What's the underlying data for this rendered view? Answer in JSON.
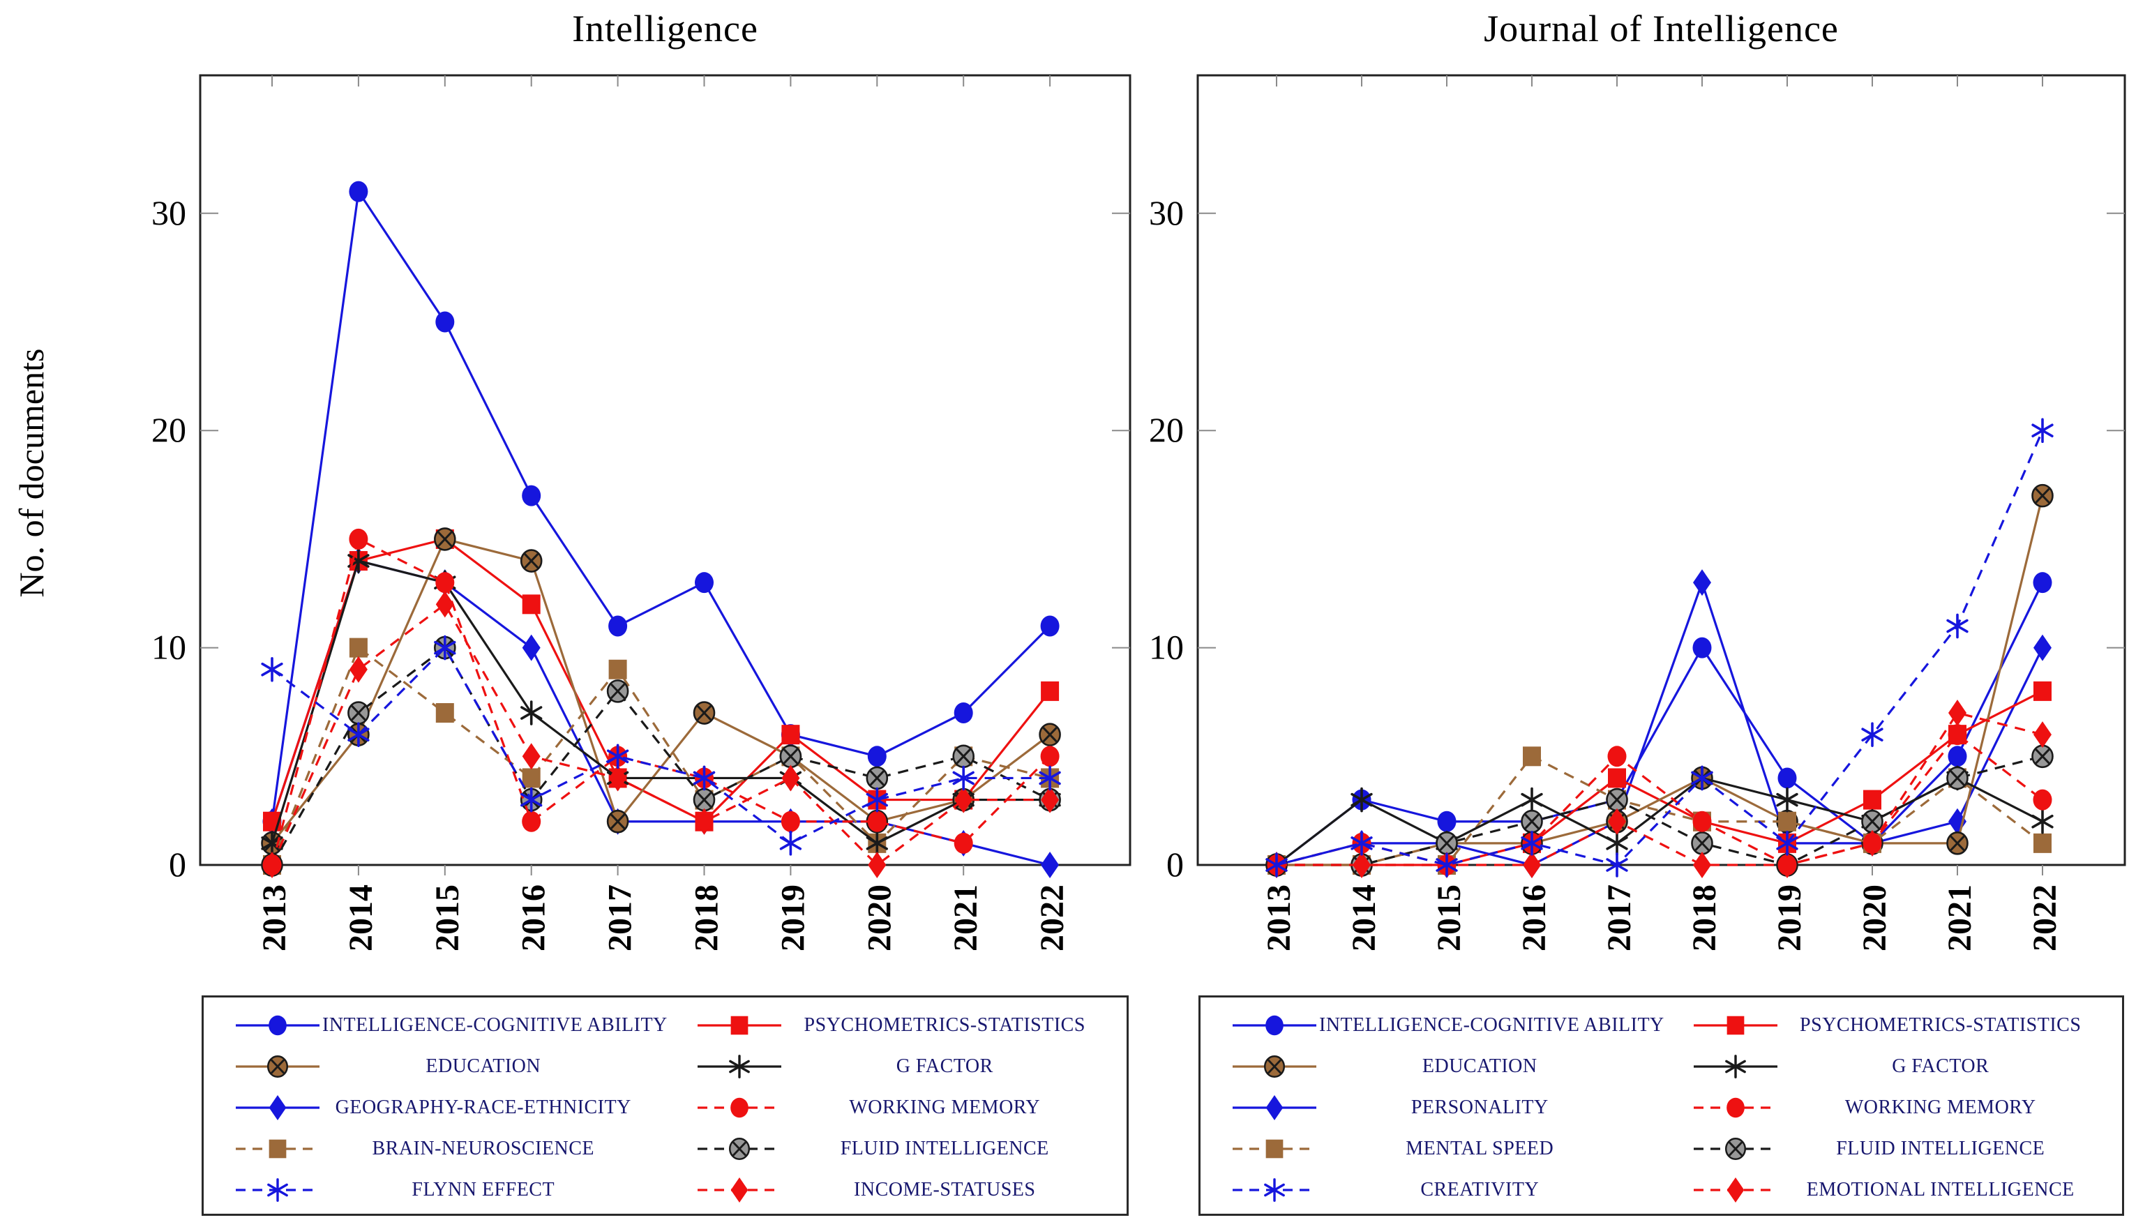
{
  "chart_data": {
    "type": "line",
    "ylabel": "No. of documents",
    "x": [
      "2013",
      "2014",
      "2015",
      "2016",
      "2017",
      "2018",
      "2019",
      "2020",
      "2021",
      "2022"
    ],
    "yticks": [
      0,
      10,
      20,
      30
    ],
    "ylim": [
      0,
      36
    ],
    "grid": false,
    "legend_position": "below",
    "palette": {
      "blue": "#1616dd",
      "red": "#ee1111",
      "brown": "#9c6a3a",
      "black": "#1a1a1a",
      "marker_gray": "#989898",
      "legend_text": "#17176e"
    },
    "charts": [
      {
        "title": "Intelligence",
        "series": [
          {
            "name": "INTELLIGENCE-COGNITIVE ABILITY",
            "color": "#1616dd",
            "dash": false,
            "marker": "circle",
            "values": [
              2,
              31,
              25,
              17,
              11,
              13,
              6,
              5,
              7,
              11
            ]
          },
          {
            "name": "EDUCATION",
            "color": "#9c6a3a",
            "dash": false,
            "marker": "circle-x",
            "values": [
              1,
              6,
              15,
              14,
              2,
              7,
              5,
              2,
              3,
              6
            ]
          },
          {
            "name": "GEOGRAPHY-RACE-ETHNICITY",
            "color": "#1616dd",
            "dash": false,
            "marker": "diamond",
            "values": [
              2,
              14,
              13,
              10,
              2,
              2,
              2,
              2,
              1,
              0
            ]
          },
          {
            "name": "BRAIN-NEUROSCIENCE",
            "color": "#9c6a3a",
            "dash": true,
            "marker": "square",
            "values": [
              0,
              10,
              7,
              4,
              9,
              3,
              5,
              1,
              5,
              4
            ]
          },
          {
            "name": "FLYNN EFFECT",
            "color": "#1616dd",
            "dash": true,
            "marker": "star",
            "values": [
              9,
              6,
              10,
              3,
              5,
              4,
              1,
              3,
              4,
              4
            ]
          },
          {
            "name": "PSYCHOMETRICS-STATISTICS",
            "color": "#ee1111",
            "dash": false,
            "marker": "square",
            "values": [
              2,
              14,
              15,
              12,
              4,
              2,
              6,
              3,
              3,
              8
            ]
          },
          {
            "name": "G FACTOR",
            "color": "#1a1a1a",
            "dash": false,
            "marker": "star",
            "values": [
              1,
              14,
              13,
              7,
              4,
              4,
              4,
              1,
              3,
              3
            ]
          },
          {
            "name": "WORKING MEMORY",
            "color": "#ee1111",
            "dash": true,
            "marker": "circle",
            "values": [
              0,
              15,
              13,
              2,
              5,
              4,
              2,
              2,
              1,
              5
            ]
          },
          {
            "name": "FLUID INTELLIGENCE",
            "color": "#1a1a1a",
            "dash": true,
            "marker": "circle-x",
            "values": [
              0,
              7,
              10,
              3,
              8,
              3,
              5,
              4,
              5,
              3
            ]
          },
          {
            "name": "INCOME-STATUSES",
            "color": "#ee1111",
            "dash": true,
            "marker": "diamond",
            "values": [
              0,
              9,
              12,
              5,
              4,
              2,
              4,
              0,
              3,
              3
            ]
          }
        ]
      },
      {
        "title": "Journal of Intelligence",
        "series": [
          {
            "name": "INTELLIGENCE-COGNITIVE ABILITY",
            "color": "#1616dd",
            "dash": false,
            "marker": "circle",
            "values": [
              0,
              3,
              2,
              2,
              3,
              10,
              4,
              1,
              5,
              13
            ]
          },
          {
            "name": "EDUCATION",
            "color": "#9c6a3a",
            "dash": false,
            "marker": "circle-x",
            "values": [
              0,
              0,
              1,
              1,
              2,
              4,
              2,
              1,
              1,
              17
            ]
          },
          {
            "name": "PERSONALITY",
            "color": "#1616dd",
            "dash": false,
            "marker": "diamond",
            "values": [
              0,
              1,
              1,
              0,
              2,
              13,
              1,
              1,
              2,
              10
            ]
          },
          {
            "name": "MENTAL SPEED",
            "color": "#9c6a3a",
            "dash": true,
            "marker": "square",
            "values": [
              0,
              0,
              0,
              5,
              3,
              2,
              2,
              1,
              4,
              1
            ]
          },
          {
            "name": "CREATIVITY",
            "color": "#1616dd",
            "dash": true,
            "marker": "star",
            "values": [
              0,
              1,
              0,
              1,
              0,
              4,
              1,
              6,
              11,
              20
            ]
          },
          {
            "name": "PSYCHOMETRICS-STATISTICS",
            "color": "#ee1111",
            "dash": false,
            "marker": "square",
            "values": [
              0,
              0,
              0,
              1,
              4,
              2,
              1,
              3,
              6,
              8
            ]
          },
          {
            "name": "G FACTOR",
            "color": "#1a1a1a",
            "dash": false,
            "marker": "star",
            "values": [
              0,
              3,
              1,
              3,
              1,
              4,
              3,
              2,
              4,
              2
            ]
          },
          {
            "name": "WORKING MEMORY",
            "color": "#ee1111",
            "dash": true,
            "marker": "circle",
            "values": [
              0,
              1,
              0,
              1,
              5,
              2,
              0,
              1,
              6,
              3
            ]
          },
          {
            "name": "FLUID INTELLIGENCE",
            "color": "#1a1a1a",
            "dash": true,
            "marker": "circle-x",
            "values": [
              0,
              0,
              1,
              2,
              3,
              1,
              0,
              2,
              4,
              5
            ]
          },
          {
            "name": "EMOTIONAL INTELLIGENCE",
            "color": "#ee1111",
            "dash": true,
            "marker": "diamond",
            "values": [
              0,
              0,
              0,
              0,
              2,
              0,
              0,
              1,
              7,
              6
            ]
          }
        ]
      }
    ]
  }
}
